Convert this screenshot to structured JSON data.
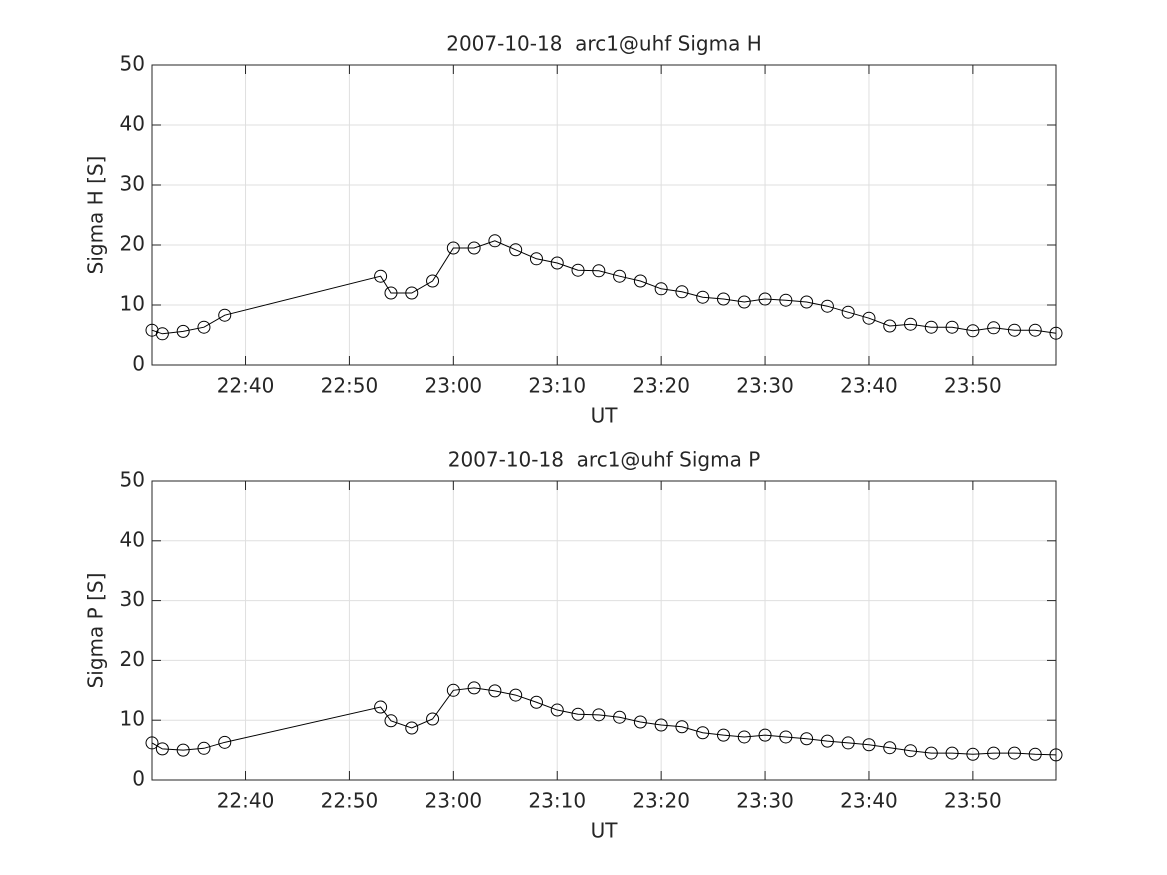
{
  "chart_data": [
    {
      "type": "line",
      "title": "2007-10-18  arc1@uhf Sigma H",
      "xlabel": "UT",
      "ylabel": "Sigma H [S]",
      "x": [
        "22:31",
        "22:32",
        "22:34",
        "22:36",
        "22:38",
        "22:53",
        "22:54",
        "22:56",
        "22:58",
        "23:00",
        "23:02",
        "23:04",
        "23:06",
        "23:08",
        "23:10",
        "23:12",
        "23:14",
        "23:16",
        "23:18",
        "23:20",
        "23:22",
        "23:24",
        "23:26",
        "23:28",
        "23:30",
        "23:32",
        "23:34",
        "23:36",
        "23:38",
        "23:40",
        "23:42",
        "23:44",
        "23:46",
        "23:48",
        "23:50",
        "23:52",
        "23:54",
        "23:56",
        "23:58"
      ],
      "series": [
        {
          "color": "#000000",
          "marker": "circle",
          "values": [
            5.8,
            5.2,
            5.6,
            6.3,
            8.3,
            14.8,
            12.0,
            12.0,
            14.0,
            19.5,
            19.5,
            20.7,
            19.2,
            17.7,
            17.0,
            15.8,
            15.7,
            14.8,
            14.0,
            12.7,
            12.2,
            11.3,
            11.0,
            10.5,
            11.0,
            10.8,
            10.5,
            9.8,
            8.8,
            7.8,
            6.5,
            6.8,
            6.3,
            6.3,
            5.7,
            6.2,
            5.8,
            5.8,
            5.3
          ]
        }
      ],
      "xlim": [
        "22:31",
        "23:58"
      ],
      "xticks": [
        "22:40",
        "22:50",
        "23:00",
        "23:10",
        "23:20",
        "23:30",
        "23:40",
        "23:50"
      ],
      "ylim": [
        0,
        50
      ],
      "yticks": [
        0,
        10,
        20,
        30,
        40,
        50
      ],
      "grid": true
    },
    {
      "type": "line",
      "title": "2007-10-18  arc1@uhf Sigma P",
      "xlabel": "UT",
      "ylabel": "Sigma P [S]",
      "x": [
        "22:31",
        "22:32",
        "22:34",
        "22:36",
        "22:38",
        "22:53",
        "22:54",
        "22:56",
        "22:58",
        "23:00",
        "23:02",
        "23:04",
        "23:06",
        "23:08",
        "23:10",
        "23:12",
        "23:14",
        "23:16",
        "23:18",
        "23:20",
        "23:22",
        "23:24",
        "23:26",
        "23:28",
        "23:30",
        "23:32",
        "23:34",
        "23:36",
        "23:38",
        "23:40",
        "23:42",
        "23:44",
        "23:46",
        "23:48",
        "23:50",
        "23:52",
        "23:54",
        "23:56",
        "23:58"
      ],
      "series": [
        {
          "color": "#000000",
          "marker": "circle",
          "values": [
            6.2,
            5.2,
            5.0,
            5.3,
            6.3,
            12.2,
            9.9,
            8.7,
            10.2,
            15.0,
            15.4,
            14.9,
            14.2,
            13.0,
            11.7,
            11.0,
            10.9,
            10.5,
            9.7,
            9.2,
            8.9,
            7.9,
            7.5,
            7.2,
            7.5,
            7.2,
            6.9,
            6.5,
            6.2,
            5.9,
            5.4,
            4.9,
            4.5,
            4.5,
            4.3,
            4.5,
            4.5,
            4.3,
            4.2
          ]
        }
      ],
      "xlim": [
        "22:31",
        "23:58"
      ],
      "xticks": [
        "22:40",
        "22:50",
        "23:00",
        "23:10",
        "23:20",
        "23:30",
        "23:40",
        "23:50"
      ],
      "ylim": [
        0,
        50
      ],
      "yticks": [
        0,
        10,
        20,
        30,
        40,
        50
      ],
      "grid": true
    }
  ]
}
